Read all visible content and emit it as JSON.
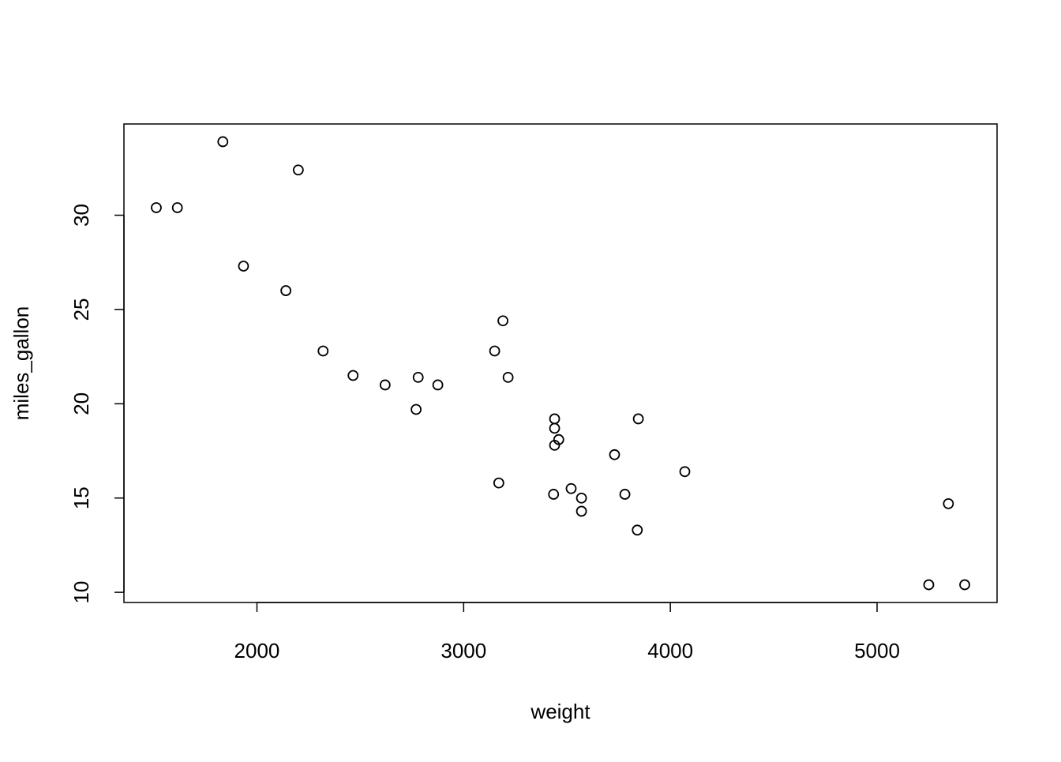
{
  "chart_data": {
    "type": "scatter",
    "xlabel": "weight",
    "ylabel": "miles_gallon",
    "x": [
      2620,
      2875,
      2320,
      3215,
      3440,
      3460,
      3570,
      3190,
      3150,
      3440,
      3440,
      4070,
      3730,
      3780,
      5250,
      5424,
      5345,
      2200,
      1615,
      1835,
      2465,
      3520,
      3435,
      3840,
      3845,
      1935,
      2140,
      1513,
      3170,
      2770,
      3570,
      2780
    ],
    "y": [
      21.0,
      21.0,
      22.8,
      21.4,
      18.7,
      18.1,
      14.3,
      24.4,
      22.8,
      19.2,
      17.8,
      16.4,
      17.3,
      15.2,
      10.4,
      10.4,
      14.7,
      32.4,
      30.4,
      33.9,
      21.5,
      15.5,
      15.2,
      13.3,
      19.2,
      27.3,
      26.0,
      30.4,
      15.8,
      19.7,
      15.0,
      21.4
    ],
    "color": "#000000",
    "xlim": [
      1356.56,
      5580.44
    ],
    "ylim": [
      9.46,
      34.84
    ],
    "xticks": [
      2000,
      3000,
      4000,
      5000
    ],
    "yticks": [
      10,
      15,
      20,
      25,
      30
    ]
  }
}
